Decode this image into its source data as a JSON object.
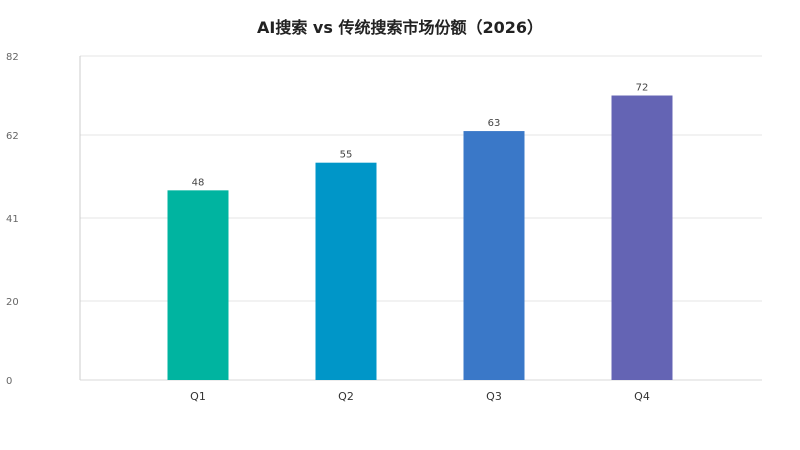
{
  "chart_data": {
    "type": "bar",
    "title": "AI搜索 vs 传统搜索市场份额（2026）",
    "categories": [
      "Q1",
      "Q2",
      "Q3",
      "Q4"
    ],
    "values": [
      48,
      55,
      63,
      72
    ],
    "colors": [
      "#00b4a0",
      "#0096c8",
      "#3a78c8",
      "#6464b4"
    ],
    "y_ticks": [
      0,
      20,
      41,
      62,
      82
    ],
    "ylim": [
      0,
      82
    ],
    "xlabel": "",
    "ylabel": "",
    "grid": true,
    "legend": "none"
  }
}
